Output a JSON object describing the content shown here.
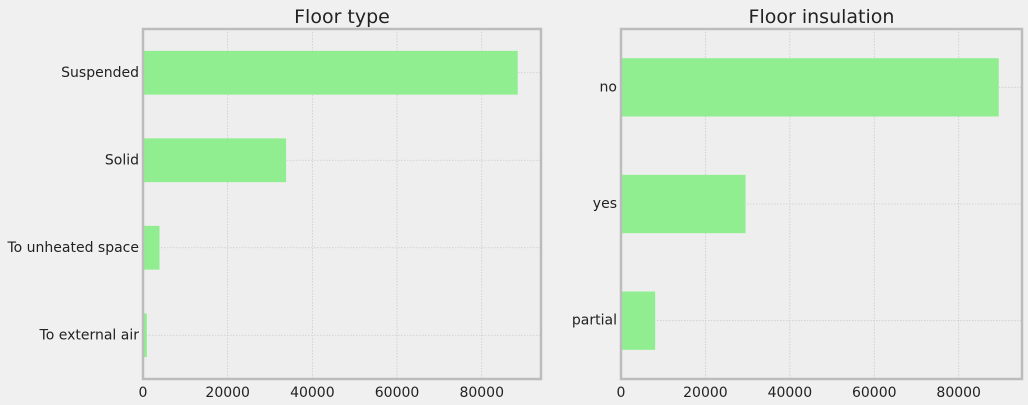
{
  "chart_data": [
    {
      "type": "bar",
      "orientation": "horizontal",
      "title": "Floor type",
      "xlabel": "",
      "ylabel": "",
      "categories": [
        "Suspended",
        "Solid",
        "To unheated space",
        "To external air"
      ],
      "values": [
        88500,
        33800,
        3900,
        900
      ],
      "xlim": [
        0,
        94000
      ],
      "xticks": [
        0,
        20000,
        40000,
        60000,
        80000
      ],
      "xtick_labels": [
        "0",
        "20000",
        "40000",
        "60000",
        "80000"
      ],
      "grid": true,
      "bar_color": "#90ee90",
      "axes_bg": "#eeeeee",
      "grid_color": "#cbcbcb",
      "frame_color": "#bcbcbc"
    },
    {
      "type": "bar",
      "orientation": "horizontal",
      "title": "Floor insulation",
      "xlabel": "",
      "ylabel": "",
      "categories": [
        "no",
        "yes",
        "partial"
      ],
      "values": [
        89500,
        29500,
        8100
      ],
      "xlim": [
        0,
        95000
      ],
      "xticks": [
        0,
        20000,
        40000,
        60000,
        80000
      ],
      "xtick_labels": [
        "0",
        "20000",
        "40000",
        "60000",
        "80000"
      ],
      "grid": true,
      "bar_color": "#90ee90",
      "axes_bg": "#eeeeee",
      "grid_color": "#cbcbcb",
      "frame_color": "#bcbcbc"
    }
  ]
}
